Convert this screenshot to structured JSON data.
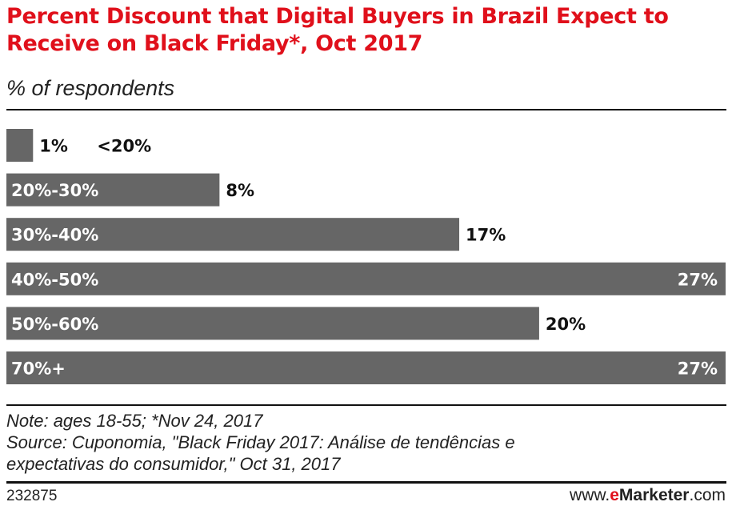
{
  "header": {
    "title": "Percent Discount that Digital Buyers in Brazil Expect to Receive on Black Friday*, Oct 2017",
    "subtitle": "% of respondents"
  },
  "chart_data": {
    "type": "bar",
    "orientation": "horizontal",
    "categories": [
      "<20%",
      "20%-30%",
      "30%-40%",
      "40%-50%",
      "50%-60%",
      "70%+"
    ],
    "values": [
      1,
      8,
      17,
      27,
      20,
      27
    ],
    "value_labels": [
      "1%",
      "8%",
      "17%",
      "27%",
      "20%",
      "27%"
    ],
    "unit": "%",
    "xlim": [
      0,
      27
    ],
    "grid": false,
    "legend": "none",
    "bar_color": "#666666"
  },
  "notes": {
    "note": "Note: ages 18-55; *Nov 24, 2017",
    "source_line1": "Source: Cuponomia, \"Black Friday 2017: Análise de tendências e",
    "source_line2": "expectativas do consumidor,\" Oct 31, 2017"
  },
  "footer": {
    "chart_id": "232875",
    "brand_prefix": "www.",
    "brand_e": "e",
    "brand_name": "Marketer",
    "brand_suffix": ".com"
  },
  "colors": {
    "title": "#e0101b",
    "bar": "#666666",
    "brand_accent": "#e0101b"
  }
}
